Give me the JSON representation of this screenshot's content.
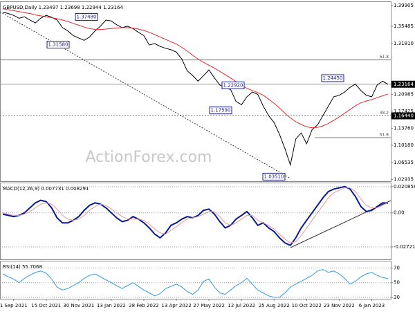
{
  "chart_data": [
    {
      "type": "line",
      "title": "GBPUSD,Daily  1.23497 1.23698 1.22944 1.23164",
      "watermark": "ActionForex.com",
      "categories": [
        null,
        null,
        "1 Sep 2021",
        null,
        null,
        null,
        null,
        null,
        "15 Oct 2021",
        null,
        null,
        null,
        null,
        null,
        "30 Nov 2021",
        null,
        null,
        null,
        null,
        null,
        "13 Jan 2022",
        null,
        null,
        null,
        null,
        null,
        "28 Feb 2022",
        null,
        null,
        null,
        null,
        null,
        "13 Apr 2022",
        null,
        null,
        null,
        null,
        null,
        "27 May 2022",
        null,
        null,
        null,
        null,
        null,
        "12 Jul 2022",
        null,
        null,
        null,
        null,
        null,
        "25 Aug 2022",
        null,
        null,
        null,
        null,
        null,
        "10 Oct 2022",
        null,
        null,
        null,
        null,
        null,
        "23 Nov 2022",
        null,
        null,
        null,
        null,
        null,
        "6 Jan 2023",
        null,
        null,
        null
      ],
      "series": [
        {
          "color": "#000000",
          "values": [
            1.385,
            1.382,
            1.378,
            1.372,
            1.375,
            1.368,
            1.362,
            1.372,
            1.378,
            1.374,
            1.368,
            1.352,
            1.345,
            1.335,
            1.33,
            1.325,
            1.332,
            1.345,
            1.355,
            1.368,
            1.366,
            1.358,
            1.352,
            1.355,
            1.35,
            1.342,
            1.335,
            1.315,
            1.318,
            1.312,
            1.308,
            1.305,
            1.3,
            1.285,
            1.26,
            1.25,
            1.238,
            1.25,
            1.262,
            1.245,
            1.23,
            1.225,
            1.22,
            1.195,
            1.188,
            1.205,
            1.215,
            1.21,
            1.185,
            1.165,
            1.15,
            1.125,
            1.095,
            1.06,
            1.115,
            1.128,
            1.105,
            1.135,
            1.145,
            1.165,
            1.185,
            1.205,
            1.208,
            1.215,
            1.225,
            1.232,
            1.218,
            1.208,
            1.205,
            1.23,
            1.238,
            1.23164
          ]
        },
        {
          "color": "#e8282a",
          "values": [
            1.392,
            1.39,
            1.388,
            1.386,
            1.384,
            1.382,
            1.379,
            1.377,
            1.375,
            1.373,
            1.371,
            1.368,
            1.365,
            1.361,
            1.357,
            1.353,
            1.35,
            1.348,
            1.348,
            1.349,
            1.35,
            1.351,
            1.352,
            1.352,
            1.351,
            1.349,
            1.346,
            1.342,
            1.337,
            1.332,
            1.327,
            1.322,
            1.317,
            1.31,
            1.302,
            1.293,
            1.285,
            1.278,
            1.272,
            1.266,
            1.259,
            1.252,
            1.245,
            1.237,
            1.229,
            1.223,
            1.218,
            1.214,
            1.208,
            1.2,
            1.191,
            1.181,
            1.17,
            1.16,
            1.152,
            1.146,
            1.141,
            1.139,
            1.14,
            1.143,
            1.148,
            1.155,
            1.162,
            1.17,
            1.178,
            1.186,
            1.192,
            1.196,
            1.199,
            1.203,
            1.207,
            1.211
          ]
        }
      ],
      "ylim": [
        1.0254,
        1.4063
      ],
      "yticks": [
        1.39905,
        1.35485,
        {
          "value": 1.3181,
          "label": "1.31810"
        },
        1.20985,
        1.17425,
        {
          "value": 1.1376,
          "label": "1.13760"
        },
        {
          "value": 1.1018,
          "label": "1.10180"
        },
        1.06535,
        1.02935
      ],
      "price_labels": [
        1.23164,
        {
          "value": 1.1644,
          "label": "1.16440"
        }
      ],
      "levels": [
        {
          "value": 1.2833,
          "label": "61.8"
        },
        {
          "value": 1.1644,
          "label": "38.2"
        },
        {
          "value": 1.118,
          "label": "61.8"
        }
      ],
      "annotations": [
        {
          "value": 1.3748,
          "label": "1.37480"
        },
        {
          "value": 1.3158,
          "label": "1.31580"
        },
        {
          "value": 1.2292,
          "label": "1.22920"
        },
        {
          "value": 1.1759,
          "label": "1.17590"
        },
        {
          "value": 1.0351,
          "label": "1.03510"
        },
        {
          "value": 1.2445,
          "label": "1.24450"
        }
      ]
    },
    {
      "type": "line",
      "title": "MACD(12,26,9) 0.007731 0.008291",
      "series": [
        {
          "color": "#0a1a8c",
          "values": [
            -0.001,
            -0.002,
            -0.003,
            -0.002,
            0.0,
            0.004,
            0.008,
            0.01,
            0.009,
            0.004,
            -0.004,
            -0.008,
            -0.008,
            -0.006,
            -0.003,
            0.002,
            0.006,
            0.008,
            0.007,
            0.004,
            0.0,
            -0.004,
            -0.007,
            -0.006,
            -0.003,
            -0.005,
            -0.008,
            -0.012,
            -0.017,
            -0.02,
            -0.016,
            -0.01,
            -0.008,
            -0.005,
            -0.003,
            -0.004,
            -0.002,
            0.002,
            0.003,
            -0.001,
            -0.007,
            -0.012,
            -0.01,
            -0.005,
            -0.002,
            0.001,
            -0.004,
            -0.01,
            -0.008,
            -0.012,
            -0.015,
            -0.02,
            -0.024,
            -0.026,
            -0.02,
            -0.012,
            -0.006,
            0.0,
            0.006,
            0.012,
            0.017,
            0.019,
            0.02,
            0.021,
            0.019,
            0.013,
            0.005,
            0.001,
            0.002,
            0.005,
            0.008,
            0.007731
          ]
        },
        {
          "color": "#e09aa0",
          "values": [
            0.0,
            -0.001,
            -0.002,
            -0.002,
            -0.001,
            0.001,
            0.004,
            0.007,
            0.008,
            0.007,
            0.003,
            -0.002,
            -0.005,
            -0.006,
            -0.005,
            -0.002,
            0.002,
            0.005,
            0.007,
            0.006,
            0.003,
            0.0,
            -0.003,
            -0.005,
            -0.005,
            -0.005,
            -0.006,
            -0.009,
            -0.013,
            -0.016,
            -0.017,
            -0.014,
            -0.011,
            -0.008,
            -0.005,
            -0.004,
            -0.003,
            -0.001,
            0.001,
            0.001,
            -0.003,
            -0.008,
            -0.01,
            -0.008,
            -0.005,
            -0.002,
            -0.002,
            -0.006,
            -0.008,
            -0.01,
            -0.013,
            -0.017,
            -0.021,
            -0.024,
            -0.023,
            -0.018,
            -0.012,
            -0.006,
            0.0,
            0.006,
            0.012,
            0.016,
            0.018,
            0.02,
            0.02,
            0.017,
            0.011,
            0.006,
            0.004,
            0.004,
            0.006,
            0.008291
          ]
        }
      ],
      "ylim": [
        -0.03716,
        0.02362
      ],
      "yticks": [
        0.020858,
        {
          "value": 0,
          "label": "0.00"
        },
        -0.027213
      ]
    },
    {
      "type": "line",
      "title": "RSI(14) 55.7068",
      "series": [
        {
          "color": "#3399dd",
          "values": [
            62,
            58,
            55,
            50,
            56,
            60,
            64,
            66,
            63,
            55,
            44,
            40,
            42,
            46,
            50,
            56,
            60,
            62,
            58,
            54,
            50,
            46,
            42,
            46,
            50,
            45,
            40,
            36,
            32,
            35,
            42,
            45,
            48,
            44,
            38,
            34,
            40,
            52,
            55,
            44,
            36,
            34,
            40,
            46,
            50,
            56,
            48,
            40,
            36,
            32,
            30,
            30,
            36,
            44,
            48,
            52,
            56,
            60,
            66,
            68,
            64,
            66,
            62,
            56,
            48,
            52,
            58,
            62,
            64,
            60,
            57,
            55.7068
          ]
        }
      ],
      "ylim": [
        28,
        79
      ],
      "yticks": [
        70,
        50,
        30
      ]
    }
  ]
}
